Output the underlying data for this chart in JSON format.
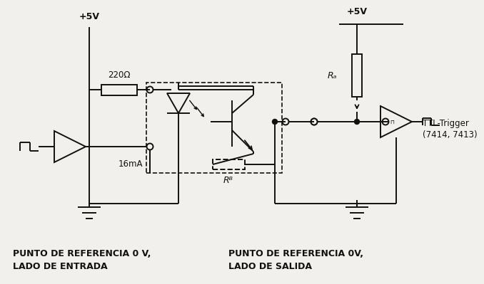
{
  "bg_color": "#f2f0ec",
  "line_color": "#111111",
  "label_5v_left": "+5V",
  "label_5v_right": "+5V",
  "label_220": "220Ω",
  "label_16ma": "16mA",
  "label_ra": "Rₐ",
  "label_rb": "Rᴮ",
  "label_ttl": "TTL-Trigger",
  "label_ttl2": "(7414, 7413)",
  "label_ref_left1": "PUNTO DE REFERENCIA 0 V,",
  "label_ref_left2": "LADO DE ENTRADA",
  "label_ref_right1": "PUNTO DE REFERENCIA 0V,",
  "label_ref_right2": "LADO DE SALIDA"
}
